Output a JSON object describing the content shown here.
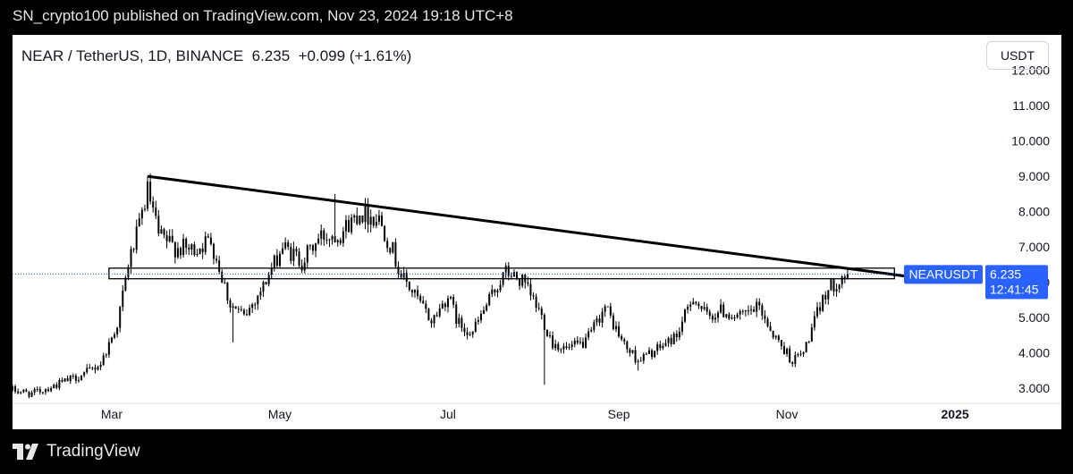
{
  "header": {
    "published": "SN_crypto100 published on TradingView.com, Nov 23, 2024 19:18 UTC+8"
  },
  "legend": {
    "symbol": "NEAR / TetherUS, 1D, BINANCE",
    "price": "6.235",
    "change": "+0.099 (+1.61%)"
  },
  "currency_button": "USDT",
  "price_tag": {
    "symbol": "NEARUSDT",
    "price": "6.235",
    "countdown": "12:41:45"
  },
  "footer": {
    "brand": "TradingView"
  },
  "colors": {
    "candles": "#000000",
    "price_tag_bg": "#2962ff",
    "last_price_line": "#2962ff"
  },
  "chart_data": {
    "type": "candlestick",
    "symbol": "NEARUSDT",
    "interval": "1D",
    "y_ticks": [
      "12.000",
      "11.000",
      "10.000",
      "9.000",
      "8.000",
      "7.000",
      "6.000",
      "5.000",
      "4.000",
      "3.000"
    ],
    "y_tick_values": [
      12,
      11,
      10,
      9,
      8,
      7,
      6,
      5,
      4,
      3
    ],
    "ylim": [
      2.6,
      13.0
    ],
    "xlim": [
      "2024-01-25",
      "2025-01-12"
    ],
    "x_ticks": [
      {
        "label": "Mar",
        "date": "2024-03-01",
        "bold": false
      },
      {
        "label": "May",
        "date": "2024-05-01",
        "bold": false
      },
      {
        "label": "Jul",
        "date": "2024-07-01",
        "bold": false
      },
      {
        "label": "Sep",
        "date": "2024-09-01",
        "bold": false
      },
      {
        "label": "Nov",
        "date": "2024-11-01",
        "bold": false
      },
      {
        "label": "2025",
        "date": "2025-01-01",
        "bold": true
      }
    ],
    "last_price": 6.235,
    "price_path": [
      [
        "2024-01-25",
        2.95
      ],
      [
        "2024-02-01",
        2.85
      ],
      [
        "2024-02-10",
        3.1
      ],
      [
        "2024-02-20",
        3.4
      ],
      [
        "2024-02-26",
        3.7
      ],
      [
        "2024-03-03",
        4.8
      ],
      [
        "2024-03-07",
        6.5
      ],
      [
        "2024-03-11",
        7.6
      ],
      [
        "2024-03-14",
        8.6
      ],
      [
        "2024-03-18",
        7.3
      ],
      [
        "2024-03-24",
        7.0
      ],
      [
        "2024-03-30",
        6.9
      ],
      [
        "2024-04-06",
        7.2
      ],
      [
        "2024-04-13",
        5.4
      ],
      [
        "2024-04-18",
        5.0
      ],
      [
        "2024-04-25",
        5.9
      ],
      [
        "2024-05-02",
        7.0
      ],
      [
        "2024-05-09",
        6.6
      ],
      [
        "2024-05-16",
        7.3
      ],
      [
        "2024-05-23",
        7.4
      ],
      [
        "2024-05-30",
        8.0
      ],
      [
        "2024-06-06",
        7.8
      ],
      [
        "2024-06-10",
        7.1
      ],
      [
        "2024-06-14",
        6.2
      ],
      [
        "2024-06-20",
        5.5
      ],
      [
        "2024-06-25",
        4.9
      ],
      [
        "2024-07-01",
        5.6
      ],
      [
        "2024-07-05",
        4.8
      ],
      [
        "2024-07-10",
        4.6
      ],
      [
        "2024-07-16",
        5.5
      ],
      [
        "2024-07-22",
        6.3
      ],
      [
        "2024-07-28",
        6.0
      ],
      [
        "2024-08-03",
        5.2
      ],
      [
        "2024-08-08",
        4.3
      ],
      [
        "2024-08-13",
        4.1
      ],
      [
        "2024-08-20",
        4.3
      ],
      [
        "2024-08-27",
        5.3
      ],
      [
        "2024-09-03",
        4.2
      ],
      [
        "2024-09-08",
        3.8
      ],
      [
        "2024-09-15",
        4.1
      ],
      [
        "2024-09-22",
        4.5
      ],
      [
        "2024-09-28",
        5.6
      ],
      [
        "2024-10-03",
        5.0
      ],
      [
        "2024-10-08",
        5.2
      ],
      [
        "2024-10-15",
        5.0
      ],
      [
        "2024-10-22",
        5.3
      ],
      [
        "2024-10-28",
        4.4
      ],
      [
        "2024-11-03",
        3.8
      ],
      [
        "2024-11-07",
        4.0
      ],
      [
        "2024-11-11",
        4.9
      ],
      [
        "2024-11-15",
        5.7
      ],
      [
        "2024-11-20",
        6.1
      ],
      [
        "2024-11-23",
        6.235
      ]
    ],
    "spikes": [
      [
        "2024-03-14",
        9.0
      ],
      [
        "2024-04-14",
        4.3
      ],
      [
        "2024-08-05",
        3.1
      ],
      [
        "2024-05-21",
        8.5
      ],
      [
        "2024-09-08",
        3.5
      ],
      [
        "2024-11-04",
        3.6
      ]
    ],
    "resistance_trendline": [
      [
        "2024-03-14",
        9.0
      ],
      [
        "2024-12-31",
        6.0
      ]
    ],
    "horizontal_zone": {
      "from": "2024-02-29",
      "to": "2024-12-10",
      "low": 6.1,
      "high": 6.4
    }
  }
}
